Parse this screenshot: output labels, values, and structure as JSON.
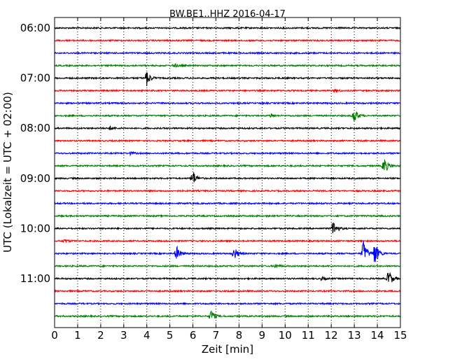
{
  "chart_data": {
    "type": "line",
    "title": "BW.BE1..HHZ 2016-04-17",
    "xlabel": "Zeit  [min]",
    "ylabel": "UTC (Lokalzeit = UTC + 02:00)",
    "xlim": [
      0,
      15
    ],
    "x_ticks": [
      "0",
      "1",
      "2",
      "3",
      "4",
      "5",
      "6",
      "7",
      "8",
      "9",
      "10",
      "11",
      "12",
      "13",
      "14",
      "15"
    ],
    "y_ticks": [
      "06:00",
      "07:00",
      "08:00",
      "09:00",
      "10:00",
      "11:00"
    ],
    "trace_interval_min": 15,
    "grid": "vertical dotted",
    "trace_colors": [
      "#000000",
      "#ff0000",
      "#0000ff",
      "#008000"
    ],
    "traces": [
      {
        "start": "06:00",
        "events": []
      },
      {
        "start": "06:15",
        "events": []
      },
      {
        "start": "06:30",
        "events": []
      },
      {
        "start": "06:45",
        "events": [
          {
            "minute": 5.2,
            "amplitude": 0.25
          }
        ]
      },
      {
        "start": "07:00",
        "events": [
          {
            "minute": 4.0,
            "amplitude": 1.0
          }
        ]
      },
      {
        "start": "07:15",
        "events": [
          {
            "minute": 12.2,
            "amplitude": 0.2
          }
        ]
      },
      {
        "start": "07:30",
        "events": []
      },
      {
        "start": "07:45",
        "events": [
          {
            "minute": 9.4,
            "amplitude": 0.25
          },
          {
            "minute": 13.0,
            "amplitude": 1.0
          }
        ]
      },
      {
        "start": "08:00",
        "events": [
          {
            "minute": 2.4,
            "amplitude": 0.2
          }
        ]
      },
      {
        "start": "08:15",
        "events": []
      },
      {
        "start": "08:30",
        "events": [
          {
            "minute": 3.3,
            "amplitude": 0.15
          }
        ]
      },
      {
        "start": "08:45",
        "events": [
          {
            "minute": 14.3,
            "amplitude": 1.1
          }
        ]
      },
      {
        "start": "09:00",
        "events": [
          {
            "minute": 6.0,
            "amplitude": 1.0
          }
        ]
      },
      {
        "start": "09:15",
        "events": []
      },
      {
        "start": "09:30",
        "events": []
      },
      {
        "start": "09:45",
        "events": []
      },
      {
        "start": "10:00",
        "events": [
          {
            "minute": 12.1,
            "amplitude": 1.1
          }
        ]
      },
      {
        "start": "10:15",
        "events": [
          {
            "minute": 0.45,
            "amplitude": 0.25
          }
        ]
      },
      {
        "start": "10:30",
        "events": [
          {
            "minute": 5.3,
            "amplitude": 0.9
          },
          {
            "minute": 7.8,
            "amplitude": 0.8
          },
          {
            "minute": 13.4,
            "amplitude": 1.7
          },
          {
            "minute": 13.9,
            "amplitude": 1.6
          }
        ]
      },
      {
        "start": "10:45",
        "events": [
          {
            "minute": 9.6,
            "amplitude": 0.2
          }
        ]
      },
      {
        "start": "11:00",
        "events": [
          {
            "minute": 11.6,
            "amplitude": 0.2
          },
          {
            "minute": 14.5,
            "amplitude": 1.1
          }
        ]
      },
      {
        "start": "11:15",
        "events": []
      },
      {
        "start": "11:30",
        "events": []
      },
      {
        "start": "11:45",
        "events": [
          {
            "minute": 6.8,
            "amplitude": 0.8
          }
        ]
      }
    ]
  }
}
